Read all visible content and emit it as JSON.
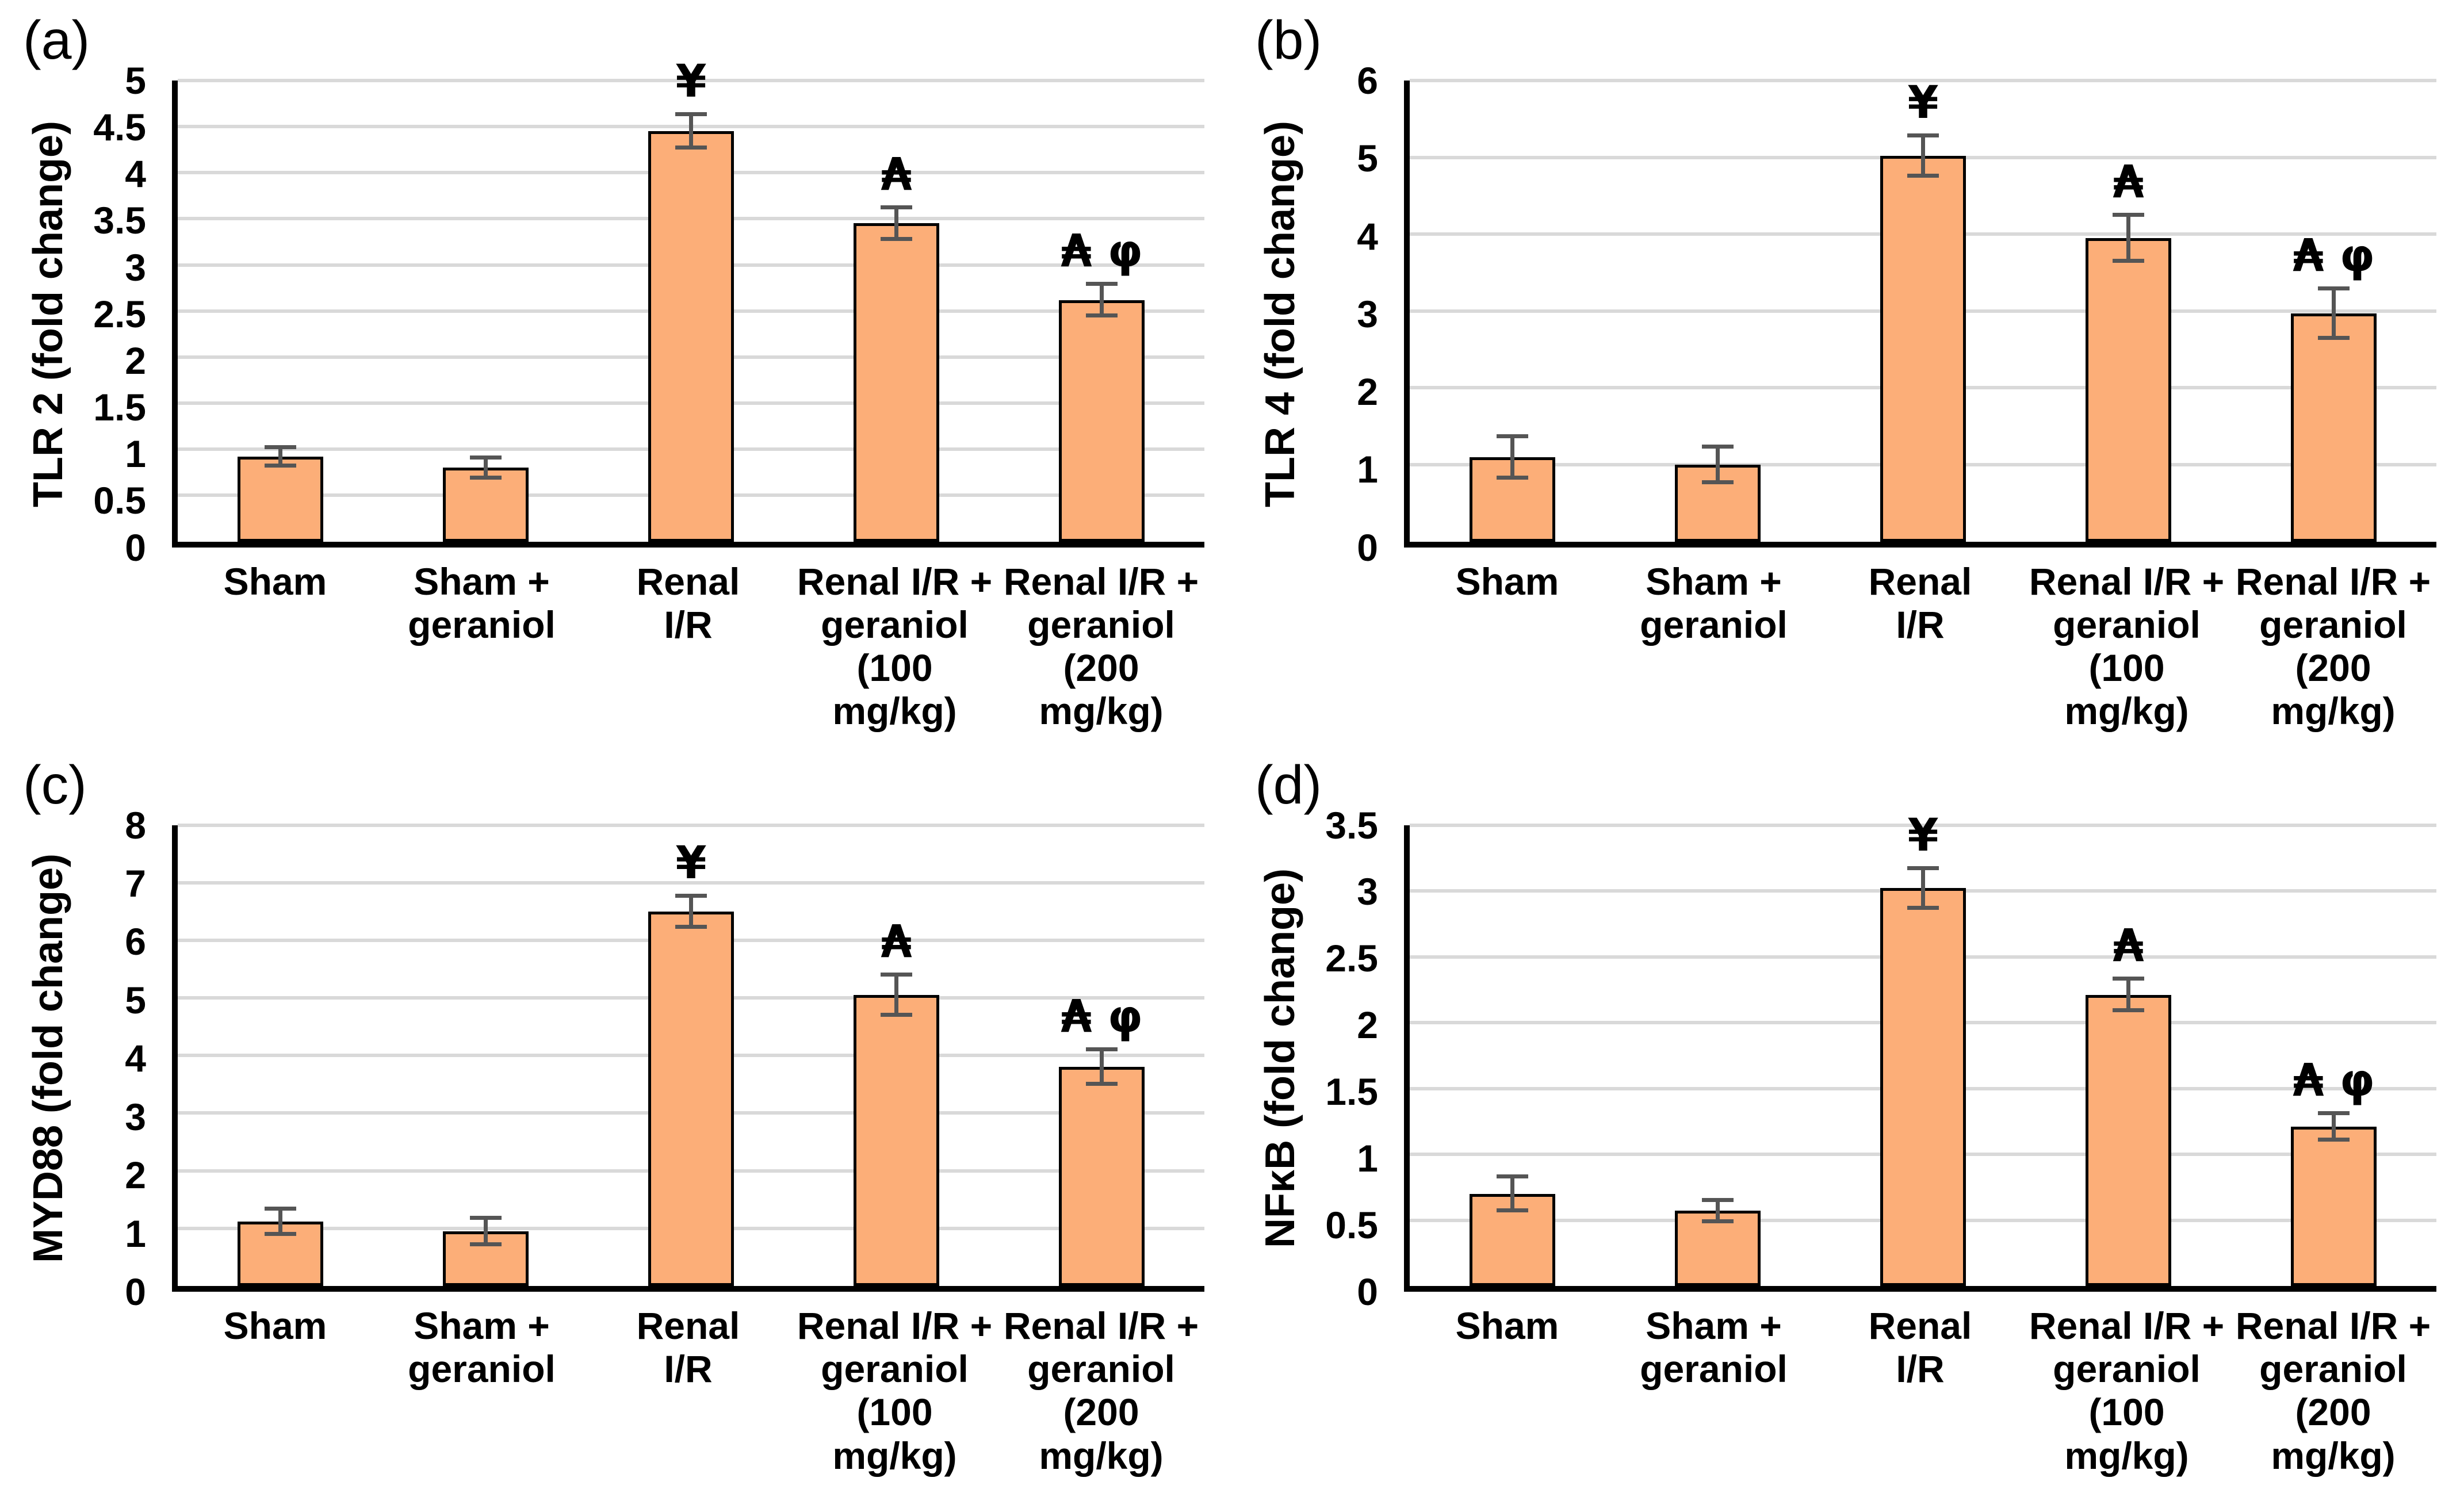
{
  "style": {
    "background": "#FFFFFF",
    "bar_fill": "#FCAE78",
    "bar_border": "#000000",
    "error_bar_color": "#555555",
    "gridline_color": "#D9D9D9",
    "axis_color": "#000000",
    "text_color": "#000000"
  },
  "chart_data": [
    {
      "panel_letter": "(a)",
      "type": "bar",
      "title": "",
      "xlabel": "",
      "ylabel": "TLR 2 (fold change)",
      "ylim": [
        0,
        5
      ],
      "ystep": 0.5,
      "yticks": [
        "0",
        "0.5",
        "1",
        "1.5",
        "2",
        "2.5",
        "3",
        "3.5",
        "4",
        "4.5",
        "5"
      ],
      "grid": true,
      "legend": false,
      "categories": [
        "Sham",
        "Sham +\ngeraniol",
        "Renal\nI/R",
        "Renal I/R +\ngeraniol\n(100 mg/kg)",
        "Renal I/R +\ngeraniol\n(200 mg/kg)"
      ],
      "values": [
        0.92,
        0.8,
        4.45,
        3.45,
        2.62
      ],
      "errors": [
        0.1,
        0.11,
        0.18,
        0.17,
        0.17
      ],
      "annotations": [
        "",
        "",
        "¥",
        "₳",
        "₳ φ"
      ]
    },
    {
      "panel_letter": "(b)",
      "type": "bar",
      "title": "",
      "xlabel": "",
      "ylabel": "TLR 4 (fold change)",
      "ylim": [
        0,
        6
      ],
      "ystep": 1,
      "yticks": [
        "0",
        "1",
        "2",
        "3",
        "4",
        "5",
        "6"
      ],
      "grid": true,
      "legend": false,
      "categories": [
        "Sham",
        "Sham +\ngeraniol",
        "Renal\nI/R",
        "Renal I/R +\ngeraniol\n(100 mg/kg)",
        "Renal I/R +\ngeraniol\n(200 mg/kg)"
      ],
      "values": [
        1.1,
        1.0,
        5.02,
        3.95,
        2.97
      ],
      "errors": [
        0.27,
        0.23,
        0.26,
        0.3,
        0.32
      ],
      "annotations": [
        "",
        "",
        "¥",
        "₳",
        "₳ φ"
      ]
    },
    {
      "panel_letter": "(c)",
      "type": "bar",
      "title": "",
      "xlabel": "",
      "ylabel": "MYD88 (fold change)",
      "ylim": [
        0,
        8
      ],
      "ystep": 1,
      "yticks": [
        "0",
        "1",
        "2",
        "3",
        "4",
        "5",
        "6",
        "7",
        "8"
      ],
      "grid": true,
      "legend": false,
      "categories": [
        "Sham",
        "Sham +\ngeraniol",
        "Renal\nI/R",
        "Renal I/R +\ngeraniol\n(100 mg/kg)",
        "Renal I/R +\ngeraniol\n(200 mg/kg)"
      ],
      "values": [
        1.12,
        0.95,
        6.5,
        5.05,
        3.8
      ],
      "errors": [
        0.22,
        0.23,
        0.27,
        0.35,
        0.3
      ],
      "annotations": [
        "",
        "",
        "¥",
        "₳",
        "₳ φ"
      ]
    },
    {
      "panel_letter": "(d)",
      "type": "bar",
      "title": "",
      "xlabel": "",
      "ylabel": "NFκB (fold change)",
      "ylim": [
        0,
        3.5
      ],
      "ystep": 0.5,
      "yticks": [
        "0",
        "0.5",
        "1",
        "1.5",
        "2",
        "2.5",
        "3",
        "3.5"
      ],
      "grid": true,
      "legend": false,
      "categories": [
        "Sham",
        "Sham +\ngeraniol",
        "Renal\nI/R",
        "Renal I/R +\ngeraniol\n(100 mg/kg)",
        "Renal I/R +\ngeraniol\n(200 mg/kg)"
      ],
      "values": [
        0.7,
        0.57,
        3.02,
        2.21,
        1.21
      ],
      "errors": [
        0.13,
        0.08,
        0.15,
        0.12,
        0.1
      ],
      "annotations": [
        "",
        "",
        "¥",
        "₳",
        "₳ φ"
      ]
    }
  ]
}
